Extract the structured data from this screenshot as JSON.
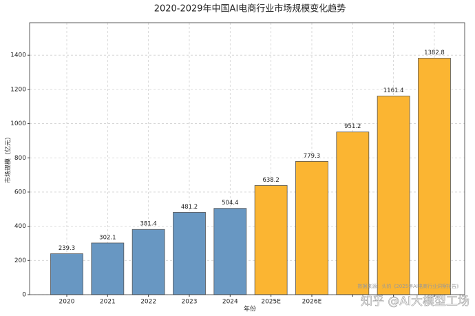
{
  "chart_data": {
    "type": "bar",
    "title": "2020-2029年中国AI电商行业市场规模变化趋势",
    "x_label": "年份",
    "y_label": "市场规模（亿元）",
    "categories": [
      "2020",
      "2021",
      "2022",
      "2023",
      "2024",
      "2025E",
      "2026E",
      null,
      null,
      null
    ],
    "values": [
      239.3,
      302.1,
      381.4,
      481.2,
      504.4,
      638.2,
      779.3,
      951.2,
      1161.4,
      1382.8
    ],
    "colors": [
      "#6897c2",
      "#6897c2",
      "#6897c2",
      "#6897c2",
      "#6897c2",
      "#fbb532",
      "#fbb532",
      "#fbb532",
      "#fbb532",
      "#fbb532"
    ],
    "ylim": [
      0,
      1590
    ],
    "yticks": [
      0,
      200,
      400,
      600,
      800,
      1000,
      1200,
      1400
    ],
    "grid": true,
    "source_note": "数据来源：头豹《2025年AI电商行业洞察报告》",
    "watermark": "知乎 @AI大模型工场"
  }
}
